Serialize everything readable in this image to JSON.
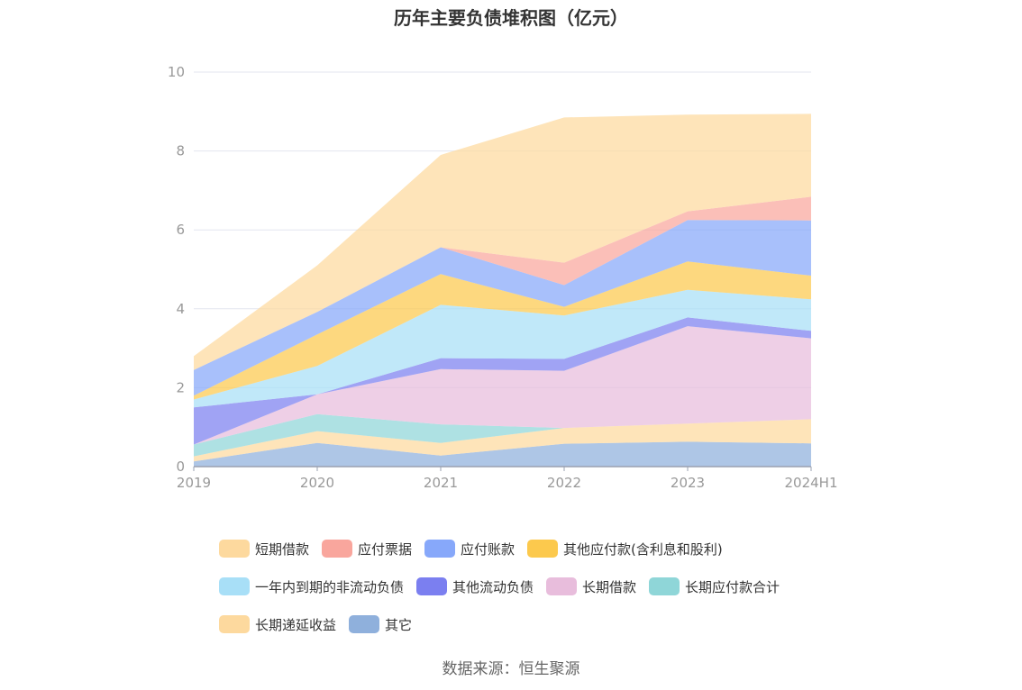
{
  "chart_data": {
    "type": "area",
    "stacked": true,
    "title": "历年主要负债堆积图（亿元）",
    "categories": [
      "2019",
      "2020",
      "2021",
      "2022",
      "2023",
      "2024H1"
    ],
    "y_ticks": [
      "0",
      "2",
      "4",
      "6",
      "8",
      "10"
    ],
    "ylim": [
      0,
      10
    ],
    "grid": true,
    "legend_position": "bottom",
    "series": [
      {
        "name": "其它",
        "color": "#8fb0dc",
        "values": [
          0.13,
          0.6,
          0.28,
          0.58,
          0.63,
          0.59
        ]
      },
      {
        "name": "长期递延收益",
        "color": "#fdd99e",
        "values": [
          0.13,
          0.3,
          0.32,
          0.4,
          0.46,
          0.61
        ]
      },
      {
        "name": "长期应付款合计",
        "color": "#8fd6d8",
        "values": [
          0.3,
          0.43,
          0.47,
          0.0,
          0.0,
          0.0
        ]
      },
      {
        "name": "长期借款",
        "color": "#e8bddc",
        "values": [
          0.0,
          0.5,
          1.4,
          1.45,
          2.47,
          2.05
        ]
      },
      {
        "name": "其他流动负债",
        "color": "#7b7ff0",
        "values": [
          0.94,
          0.0,
          0.28,
          0.3,
          0.22,
          0.19
        ]
      },
      {
        "name": "一年内到期的非流动负债",
        "color": "#a8dff7",
        "values": [
          0.2,
          0.72,
          1.35,
          1.1,
          0.7,
          0.8
        ]
      },
      {
        "name": "其他应付款(含利息和股利)",
        "color": "#fcc94d",
        "values": [
          0.1,
          0.8,
          0.78,
          0.22,
          0.72,
          0.6
        ]
      },
      {
        "name": "应付账款",
        "color": "#87a8fa",
        "values": [
          0.65,
          0.57,
          0.68,
          0.55,
          1.05,
          1.4
        ]
      },
      {
        "name": "应付票据",
        "color": "#f9a69d",
        "values": [
          0.0,
          0.0,
          0.0,
          0.57,
          0.22,
          0.6
        ]
      },
      {
        "name": "短期借款",
        "color": "#fdd99e",
        "values": [
          0.35,
          1.18,
          2.34,
          3.68,
          2.45,
          2.1
        ]
      }
    ]
  },
  "legend": [
    {
      "label": "短期借款",
      "color": "#fdd99e"
    },
    {
      "label": "应付票据",
      "color": "#f9a69d"
    },
    {
      "label": "应付账款",
      "color": "#87a8fa"
    },
    {
      "label": "其他应付款(含利息和股利)",
      "color": "#fcc94d"
    },
    {
      "label": "一年内到期的非流动负债",
      "color": "#a8dff7"
    },
    {
      "label": "其他流动负债",
      "color": "#7b7ff0"
    },
    {
      "label": "长期借款",
      "color": "#e8bddc"
    },
    {
      "label": "长期应付款合计",
      "color": "#8fd6d8"
    },
    {
      "label": "长期递延收益",
      "color": "#fdd99e"
    },
    {
      "label": "其它",
      "color": "#8fb0dc"
    }
  ],
  "source": "数据来源：恒生聚源"
}
